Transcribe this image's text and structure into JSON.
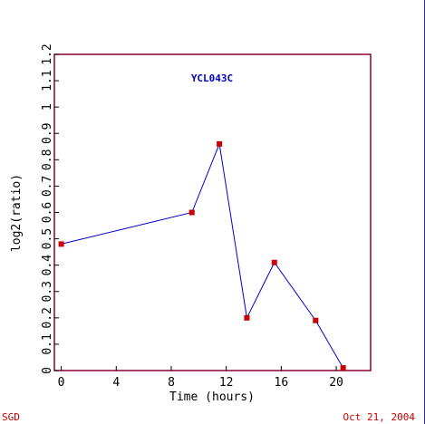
{
  "chart_data": {
    "type": "line",
    "title": "YCL043C",
    "xlabel": "Time (hours)",
    "ylabel": "log2(ratio)",
    "xlim": [
      -0.5,
      22.5
    ],
    "ylim": [
      0,
      1.2
    ],
    "xticks": [
      0,
      4,
      8,
      12,
      16,
      20
    ],
    "yticks": [
      0,
      0.1,
      0.2,
      0.3,
      0.4,
      0.5,
      0.6,
      0.7,
      0.8,
      0.9,
      1,
      1.1,
      1.2
    ],
    "ytick_labels": [
      "0",
      "0.1",
      "0.2",
      "0.3",
      "0.4",
      "0.5",
      "0.6",
      "0.7",
      "0.8",
      "0.9",
      "1",
      "1.1",
      "1.2"
    ],
    "grid": false,
    "series": [
      {
        "x": [
          0,
          9.5,
          11.5,
          13.5,
          15.5,
          18.5,
          20.5
        ],
        "y": [
          0.48,
          0.6,
          0.86,
          0.2,
          0.41,
          0.19,
          0.01
        ],
        "line_color": "#0000cc",
        "marker_color": "#cc0000"
      }
    ]
  },
  "footer": {
    "left": "SGD",
    "right": "Oct 21, 2004"
  },
  "colors": {
    "frame": "#880033",
    "line": "#0000cc",
    "marker": "#cc0000",
    "title": "#0000cc",
    "footer": "#cc0000"
  }
}
